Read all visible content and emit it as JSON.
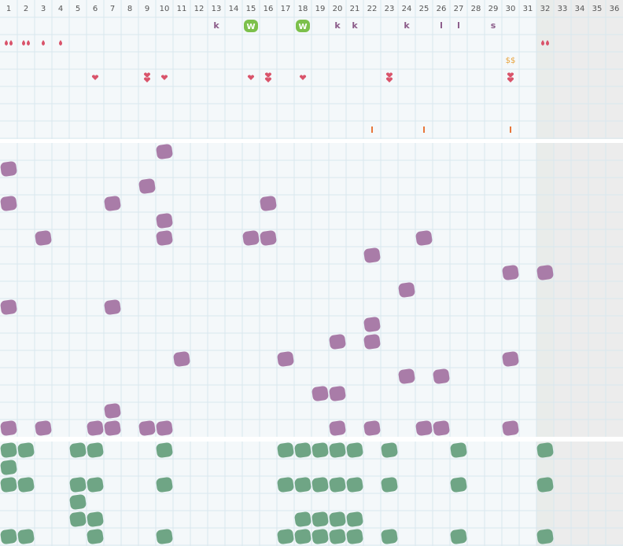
{
  "header": {
    "days": [
      1,
      2,
      3,
      4,
      5,
      6,
      7,
      8,
      9,
      10,
      11,
      12,
      13,
      14,
      15,
      16,
      17,
      18,
      19,
      20,
      21,
      22,
      23,
      24,
      25,
      26,
      27,
      28,
      29,
      30,
      31,
      32,
      33,
      34,
      35,
      36
    ]
  },
  "top": {
    "letters": [
      {
        "day": 13,
        "text": "k"
      },
      {
        "day": 20,
        "text": "k"
      },
      {
        "day": 21,
        "text": "k"
      },
      {
        "day": 24,
        "text": "k"
      },
      {
        "day": 26,
        "text": "l"
      },
      {
        "day": 27,
        "text": "l"
      },
      {
        "day": 29,
        "text": "s"
      }
    ],
    "badges": [
      {
        "day": 15,
        "text": "W"
      },
      {
        "day": 18,
        "text": "W"
      }
    ],
    "drops": [
      {
        "day": 1,
        "count": 2
      },
      {
        "day": 2,
        "count": 2
      },
      {
        "day": 3,
        "count": 1
      },
      {
        "day": 4,
        "count": 1
      },
      {
        "day": 32,
        "count": 2
      }
    ],
    "money": [
      {
        "day": 30,
        "text": "$$"
      }
    ],
    "hearts": [
      {
        "day": 6,
        "count": 1
      },
      {
        "day": 9,
        "count": 2
      },
      {
        "day": 10,
        "count": 1
      },
      {
        "day": 15,
        "count": 1
      },
      {
        "day": 16,
        "count": 2
      },
      {
        "day": 18,
        "count": 1
      },
      {
        "day": 23,
        "count": 2
      },
      {
        "day": 30,
        "count": 2
      }
    ],
    "ticks": [
      22,
      25,
      30
    ]
  },
  "purple_rows": [
    [
      10
    ],
    [
      1
    ],
    [
      9
    ],
    [
      1,
      7,
      16
    ],
    [
      10
    ],
    [
      3,
      10,
      15,
      16,
      25
    ],
    [
      22
    ],
    [
      30,
      32
    ],
    [
      24
    ],
    [
      1,
      7
    ],
    [
      22
    ],
    [
      20,
      22
    ],
    [
      11,
      17,
      30
    ],
    [
      24,
      26
    ],
    [
      19,
      20
    ],
    [
      7
    ],
    [
      1,
      3,
      6,
      7,
      9,
      10,
      20,
      22,
      25,
      26,
      30
    ]
  ],
  "green_rows": [
    [
      1,
      2,
      5,
      6,
      10,
      17,
      18,
      19,
      20,
      21,
      23,
      27,
      32
    ],
    [
      1
    ],
    [
      1,
      2,
      5,
      6,
      10,
      17,
      18,
      19,
      20,
      21,
      23,
      27,
      32
    ],
    [
      5
    ],
    [
      5,
      6,
      18,
      19,
      20,
      21
    ],
    [
      1,
      2,
      6,
      10,
      17,
      18,
      19,
      20,
      21,
      23,
      27,
      32
    ]
  ]
}
